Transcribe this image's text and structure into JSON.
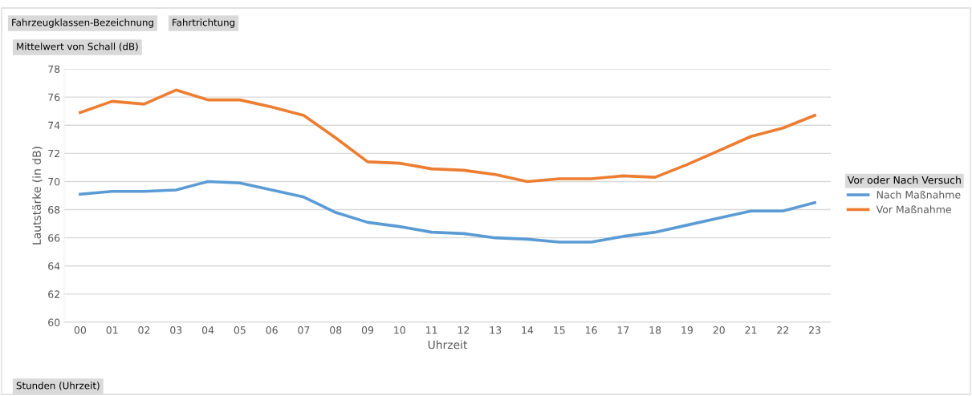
{
  "chart_data": {
    "type": "line",
    "xlabel": "Uhrzeit",
    "ylabel": "Lautstärke (in dB)",
    "legend_title": "Vor oder Nach Versuch",
    "annotations": [
      "Fahrzeugklassen-Bezeichnung",
      "Fahrtrichtung",
      "Mittelwert von Schall (dB)",
      "Stunden (Uhrzeit)"
    ],
    "categories": [
      "00",
      "01",
      "02",
      "03",
      "04",
      "05",
      "06",
      "07",
      "08",
      "09",
      "10",
      "11",
      "12",
      "13",
      "14",
      "15",
      "16",
      "17",
      "18",
      "19",
      "20",
      "21",
      "22",
      "23"
    ],
    "series": [
      {
        "name": "Nach Maßnahme",
        "color": "#5b9bd5",
        "values": [
          69.1,
          69.3,
          69.3,
          69.4,
          70.0,
          69.9,
          69.4,
          68.9,
          67.8,
          67.1,
          66.8,
          66.4,
          66.3,
          66.0,
          65.9,
          65.7,
          65.7,
          66.1,
          66.4,
          66.9,
          67.4,
          67.9,
          67.9,
          68.5
        ]
      },
      {
        "name": "Vor Maßnahme",
        "color": "#ed7d31",
        "values": [
          74.9,
          75.7,
          75.5,
          76.5,
          75.8,
          75.8,
          75.3,
          74.7,
          73.1,
          71.4,
          71.3,
          70.9,
          70.8,
          70.5,
          70.0,
          70.2,
          70.2,
          70.4,
          70.3,
          71.2,
          72.2,
          73.2,
          73.8,
          74.7
        ]
      }
    ],
    "ylim": [
      60,
      78
    ],
    "yticks": [
      60,
      62,
      64,
      66,
      68,
      70,
      72,
      74,
      76,
      78
    ],
    "grid": "y",
    "legend": "right",
    "marker": "none",
    "line_style": "solid"
  }
}
